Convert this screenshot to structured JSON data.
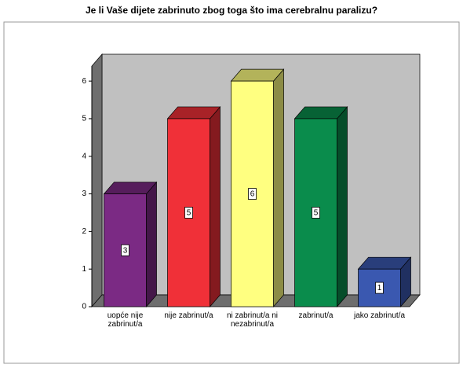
{
  "chart_data": {
    "type": "bar3d",
    "title": "Je li Vaše dijete zabrinuto zbog toga što ima cerebralnu paralizu?",
    "categories": [
      "uopće nije zabrinut/a",
      "nije zabrinut/a",
      "ni zabrinut/a ni nezabrinut/a",
      "zabrinut/a",
      "jako zabrinut/a"
    ],
    "values": [
      3,
      5,
      6,
      5,
      1
    ],
    "colors": [
      "#7b2a84",
      "#f03038",
      "#ffff80",
      "#0a8c4c",
      "#3a58b0"
    ],
    "ylim": [
      0,
      6.4
    ],
    "yticks": [
      0,
      1,
      2,
      3,
      4,
      5,
      6
    ]
  }
}
